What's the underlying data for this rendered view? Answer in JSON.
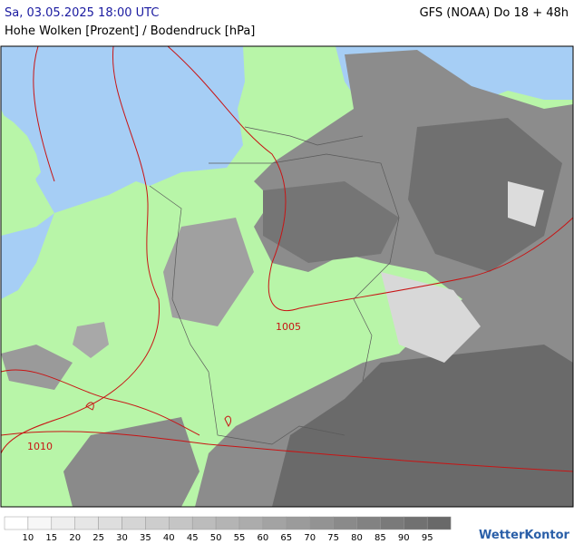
{
  "header": {
    "datetime": "Sa, 03.05.2025 18:00 UTC",
    "model": "GFS (NOAA) Do 18 + 48h",
    "subtitle": "Hohe Wolken [Prozent] / Bodendruck [hPa]"
  },
  "map": {
    "isobar_labels": [
      "1005",
      "1010"
    ]
  },
  "legend": {
    "labels": [
      "10",
      "15",
      "20",
      "25",
      "30",
      "35",
      "40",
      "45",
      "50",
      "55",
      "60",
      "65",
      "70",
      "75",
      "80",
      "85",
      "90",
      "95"
    ]
  },
  "logo": "WetterKontor"
}
